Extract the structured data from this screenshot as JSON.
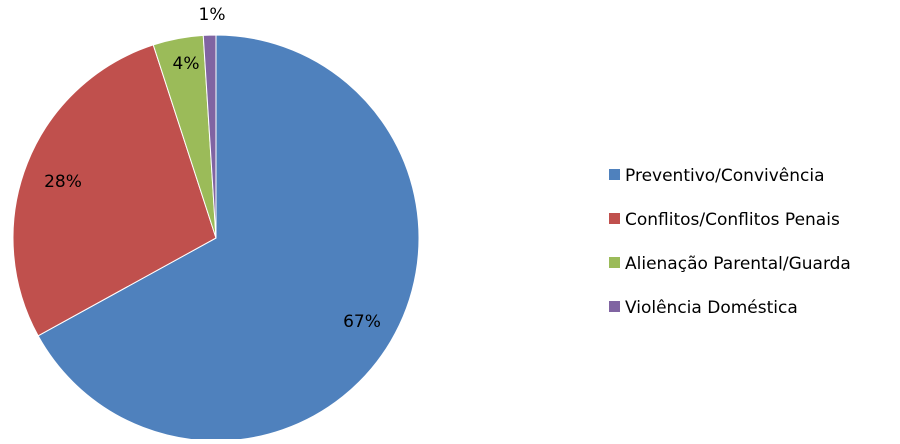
{
  "chart_data": {
    "type": "pie",
    "title": "",
    "start_angle_deg": 0,
    "direction": "clockwise",
    "legend_position": "right",
    "slices": [
      {
        "label": "Preventivo/Convivência",
        "value": 67,
        "display": "67%",
        "color": "#4F81BD"
      },
      {
        "label": "Conflitos/Conflitos Penais",
        "value": 28,
        "display": "28%",
        "color": "#C0504D"
      },
      {
        "label": "Alienação Parental/Guarda",
        "value": 4,
        "display": "4%",
        "color": "#9BBB59"
      },
      {
        "label": "Violência Doméstica",
        "value": 1,
        "display": "1%",
        "color": "#8064A2"
      }
    ]
  }
}
